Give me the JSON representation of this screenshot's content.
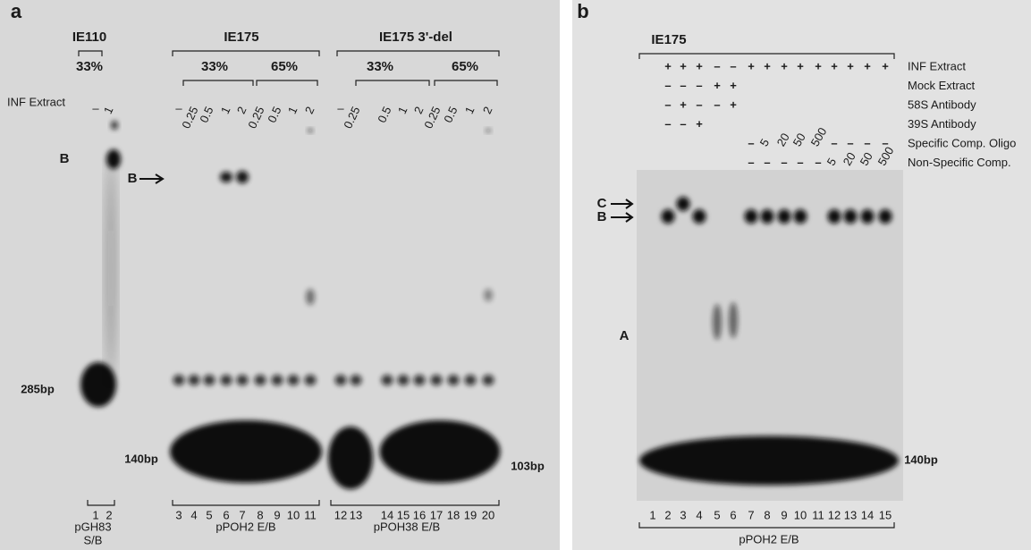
{
  "panel_a": {
    "label": "a",
    "headers": [
      "IE110",
      "IE175",
      "IE175 3'-del"
    ],
    "percentages": [
      "33%",
      "33%",
      "65%",
      "33%",
      "65%"
    ],
    "row_label": "INF Extract",
    "amounts": [
      "–",
      "1",
      "–",
      "0.25",
      "0.5",
      "1",
      "2",
      "0.25",
      "0.5",
      "1",
      "2",
      "–",
      "0.25",
      "0.5",
      "1",
      "2",
      "0.25",
      "0.5",
      "1",
      "2"
    ],
    "band_b_left": "B",
    "band_b_arrow": "B",
    "size_285": "285bp",
    "size_140": "140bp",
    "size_103": "103bp",
    "lanes": [
      "1",
      "2",
      "3",
      "4",
      "5",
      "6",
      "7",
      "8",
      "9",
      "10",
      "11",
      "12",
      "13",
      "14",
      "15",
      "16",
      "17",
      "18",
      "19",
      "20"
    ],
    "plasmids": [
      "pGH83",
      "S/B",
      "pPOH2   E/B",
      "pPOH38   E/B"
    ]
  },
  "panel_b": {
    "label": "b",
    "header": "IE175",
    "rows": [
      {
        "label": "INF Extract",
        "marks": [
          "+",
          "+",
          "+",
          "–",
          "–",
          "+",
          "+",
          "+",
          "+",
          "+",
          "+",
          "+",
          "+",
          "+"
        ]
      },
      {
        "label": "Mock Extract",
        "marks": [
          "–",
          "–",
          "–",
          "+",
          "+"
        ]
      },
      {
        "label": "58S Antibody",
        "marks": [
          "–",
          "+",
          "–",
          "–",
          "+"
        ]
      },
      {
        "label": "39S Antibody",
        "marks": [
          "–",
          "–",
          "+"
        ]
      },
      {
        "label": "Specific Comp. Oligo",
        "marks": [
          "–",
          "5",
          "20",
          "50",
          "500",
          "–",
          "–",
          "–",
          "–"
        ]
      },
      {
        "label": "Non-Specific Comp.",
        "marks": [
          "–",
          "–",
          "–",
          "–",
          "–",
          "5",
          "20",
          "50",
          "500"
        ]
      }
    ],
    "band_c": "C",
    "band_b": "B",
    "band_a": "A",
    "size_140": "140bp",
    "lanes": [
      "1",
      "2",
      "3",
      "4",
      "5",
      "6",
      "7",
      "8",
      "9",
      "10",
      "11",
      "12",
      "13",
      "14",
      "15"
    ],
    "plasmid": "pPOH2   E/B"
  }
}
